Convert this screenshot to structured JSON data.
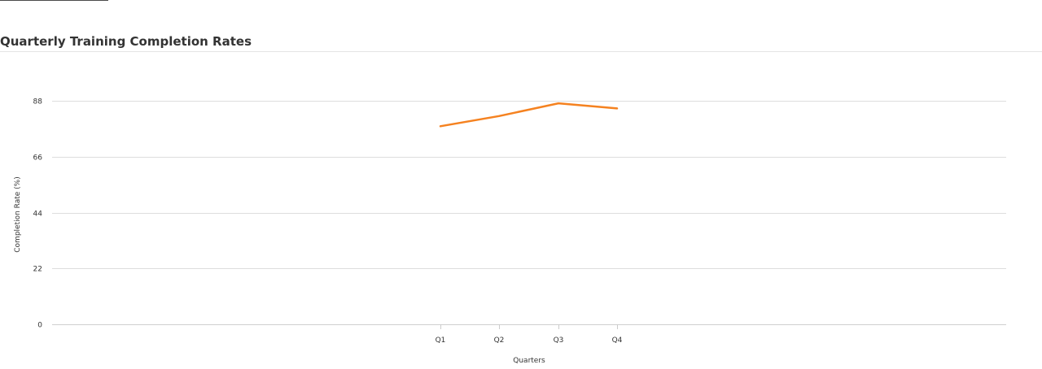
{
  "chart_data": {
    "type": "line",
    "title": "Quarterly Training Completion Rates",
    "xlabel": "Quarters",
    "ylabel": "Completion Rate (%)",
    "categories": [
      "Q1",
      "Q2",
      "Q3",
      "Q4"
    ],
    "series": [
      {
        "values": [
          78,
          82,
          87,
          85
        ],
        "color": "#f58220"
      }
    ],
    "yticks": [
      0,
      22,
      44,
      66,
      88
    ],
    "ylim": [
      0,
      88
    ],
    "grid": true,
    "legend": "none"
  }
}
